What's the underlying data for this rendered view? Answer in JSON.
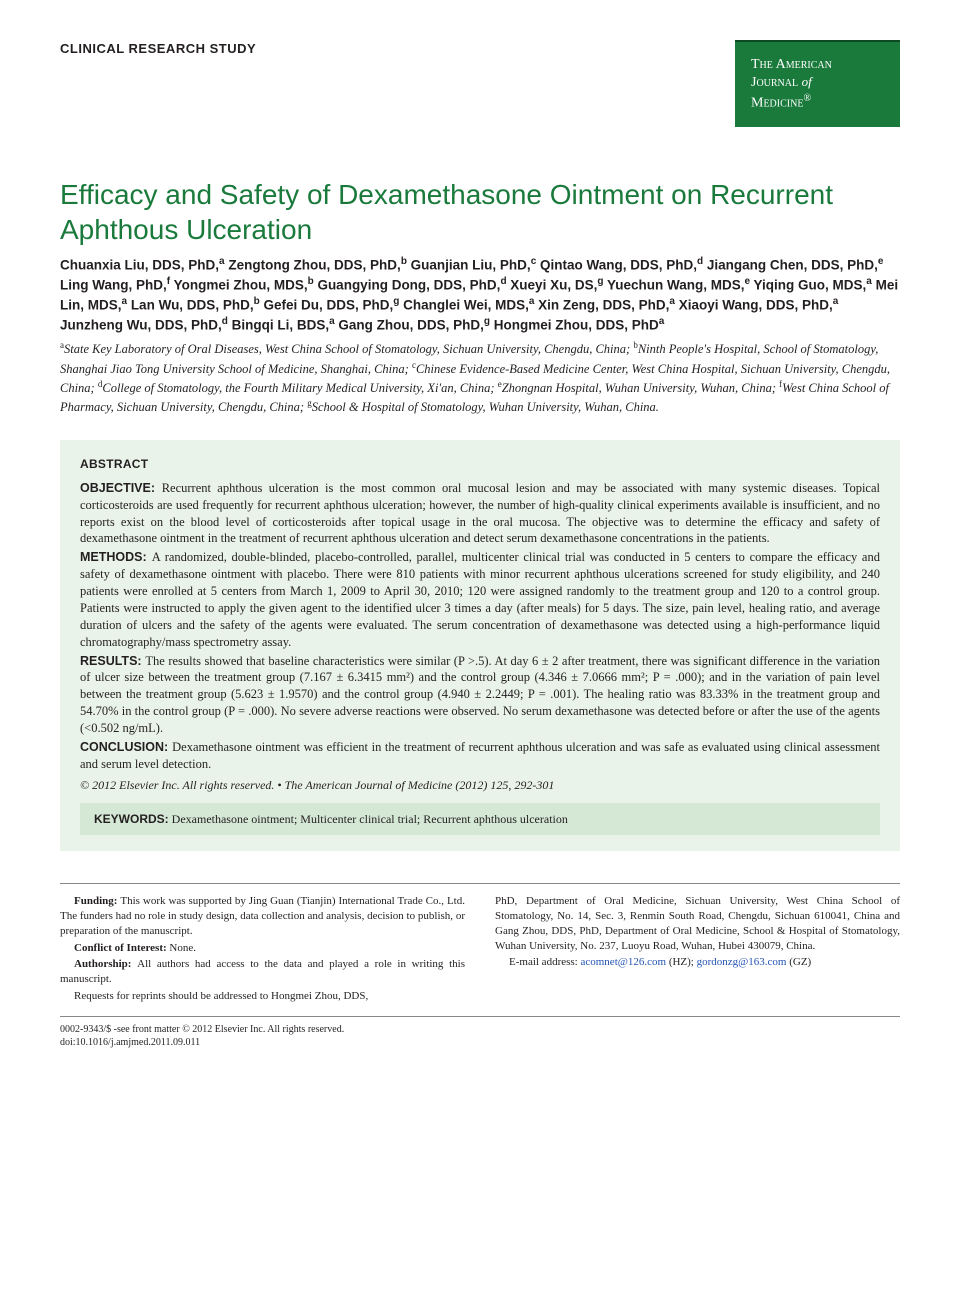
{
  "header": {
    "section_label": "CLINICAL RESEARCH STUDY",
    "journal_name_line1": "The American",
    "journal_name_line2": "Journal",
    "journal_of": "of",
    "journal_name_line3": "Medicine",
    "badge_bg": "#1a7a3c",
    "badge_text_color": "#ffffff"
  },
  "title": "Efficacy and Safety of Dexamethasone Ointment on Recurrent Aphthous Ulceration",
  "title_color": "#1a7a3c",
  "authors_html": "Chuanxia Liu, DDS, PhD,<sup>a</sup> Zengtong Zhou, DDS, PhD,<sup>b</sup> Guanjian Liu, PhD,<sup>c</sup> Qintao Wang, DDS, PhD,<sup>d</sup> Jiangang Chen, DDS, PhD,<sup>e</sup> Ling Wang, PhD,<sup>f</sup> Yongmei Zhou, MDS,<sup>b</sup> Guangying Dong, DDS, PhD,<sup>d</sup> Xueyi Xu, DS,<sup>g</sup> Yuechun Wang, MDS,<sup>e</sup> Yiqing Guo, MDS,<sup>a</sup> Mei Lin, MDS,<sup>a</sup> Lan Wu, DDS, PhD,<sup>b</sup> Gefei Du, DDS, PhD,<sup>g</sup> Changlei Wei, MDS,<sup>a</sup> Xin Zeng, DDS, PhD,<sup>a</sup> Xiaoyi Wang, DDS, PhD,<sup>a</sup> Junzheng Wu, DDS, PhD,<sup>d</sup> Bingqi Li, BDS,<sup>a</sup> Gang Zhou, DDS, PhD,<sup>g</sup> Hongmei Zhou, DDS, PhD<sup>a</sup>",
  "affiliations_html": "<sup>a</sup>State Key Laboratory of Oral Diseases, West China School of Stomatology, Sichuan University, Chengdu, China; <sup>b</sup>Ninth People's Hospital, School of Stomatology, Shanghai Jiao Tong University School of Medicine, Shanghai, China; <sup>c</sup>Chinese Evidence-Based Medicine Center, West China Hospital, Sichuan University, Chengdu, China; <sup>d</sup>College of Stomatology, the Fourth Military Medical University, Xi'an, China; <sup>e</sup>Zhongnan Hospital, Wuhan University, Wuhan, China; <sup>f</sup>West China School of Pharmacy, Sichuan University, Chengdu, China; <sup>g</sup>School & Hospital of Stomatology, Wuhan University, Wuhan, China.",
  "abstract": {
    "label": "ABSTRACT",
    "box_bg": "#eaf3ea",
    "sections": [
      {
        "label": "OBJECTIVE:",
        "text": "Recurrent aphthous ulceration is the most common oral mucosal lesion and may be associated with many systemic diseases. Topical corticosteroids are used frequently for recurrent aphthous ulceration; however, the number of high-quality clinical experiments available is insufficient, and no reports exist on the blood level of corticosteroids after topical usage in the oral mucosa. The objective was to determine the efficacy and safety of dexamethasone ointment in the treatment of recurrent aphthous ulceration and detect serum dexamethasone concentrations in the patients."
      },
      {
        "label": "METHODS:",
        "text": "A randomized, double-blinded, placebo-controlled, parallel, multicenter clinical trial was conducted in 5 centers to compare the efficacy and safety of dexamethasone ointment with placebo. There were 810 patients with minor recurrent aphthous ulcerations screened for study eligibility, and 240 patients were enrolled at 5 centers from March 1, 2009 to April 30, 2010; 120 were assigned randomly to the treatment group and 120 to a control group. Patients were instructed to apply the given agent to the identified ulcer 3 times a day (after meals) for 5 days. The size, pain level, healing ratio, and average duration of ulcers and the safety of the agents were evaluated. The serum concentration of dexamethasone was detected using a high-performance liquid chromatography/mass spectrometry assay."
      },
      {
        "label": "RESULTS:",
        "text": "The results showed that baseline characteristics were similar (P >.5). At day 6 ± 2 after treatment, there was significant difference in the variation of ulcer size between the treatment group (7.167 ± 6.3415 mm²) and the control group (4.346 ± 7.0666 mm²; P = .000); and in the variation of pain level between the treatment group (5.623 ± 1.9570) and the control group (4.940 ± 2.2449; P = .001). The healing ratio was 83.33% in the treatment group and 54.70% in the control group (P = .000). No severe adverse reactions were observed. No serum dexamethasone was detected before or after the use of the agents (<0.502 ng/mL)."
      },
      {
        "label": "CONCLUSION:",
        "text": "Dexamethasone ointment was efficient in the treatment of recurrent aphthous ulceration and was safe as evaluated using clinical assessment and serum level detection."
      }
    ],
    "copyright": "© 2012 Elsevier Inc. All rights reserved. • The American Journal of Medicine (2012) 125, 292-301",
    "keywords_label": "KEYWORDS:",
    "keywords_text": "Dexamethasone ointment; Multicenter clinical trial; Recurrent aphthous ulceration",
    "keywords_bg": "#d5e8d5"
  },
  "footer": {
    "left": [
      {
        "label": "Funding:",
        "text": "This work was supported by Jing Guan (Tianjin) International Trade Co., Ltd. The funders had no role in study design, data collection and analysis, decision to publish, or preparation of the manuscript."
      },
      {
        "label": "Conflict of Interest:",
        "text": "None."
      },
      {
        "label": "Authorship:",
        "text": "All authors had access to the data and played a role in writing this manuscript."
      },
      {
        "label": "",
        "text": "Requests for reprints should be addressed to Hongmei Zhou, DDS,"
      }
    ],
    "right_text": "PhD, Department of Oral Medicine, Sichuan University, West China School of Stomatology, No. 14, Sec. 3, Renmin South Road, Chengdu, Sichuan 610041, China and Gang Zhou, DDS, PhD, Department of Oral Medicine, School & Hospital of Stomatology, Wuhan University, No. 237, Luoyu Road, Wuhan, Hubei 430079, China.",
    "email_label": "E-mail address:",
    "email1": "acomnet@126.com",
    "email1_suffix": "(HZ);",
    "email2": "gordonzg@163.com",
    "email2_suffix": "(GZ)"
  },
  "bottom": {
    "line1": "0002-9343/$ -see front matter © 2012 Elsevier Inc. All rights reserved.",
    "line2": "doi:10.1016/j.amjmed.2011.09.011"
  }
}
